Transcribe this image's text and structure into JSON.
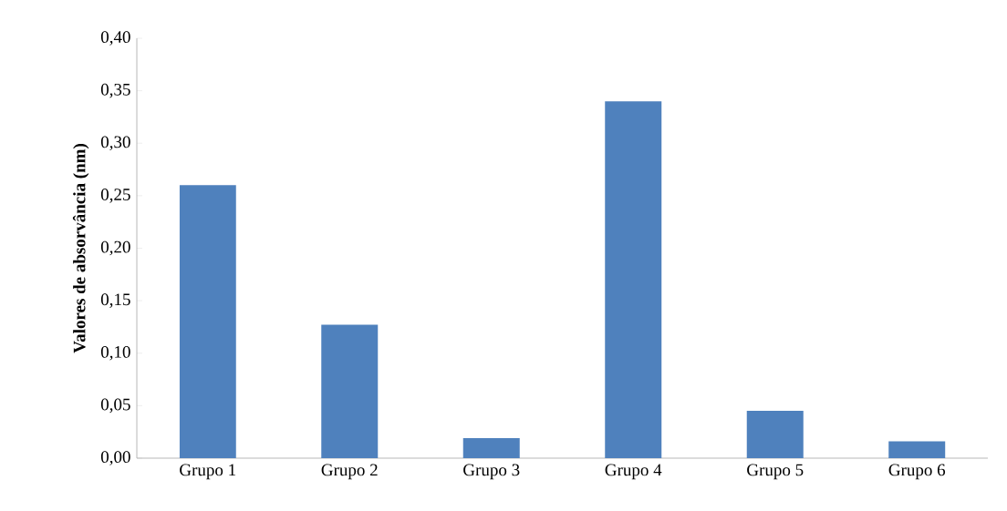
{
  "chart_data": {
    "type": "bar",
    "ylabel": "Valores de absorvância  (nm)",
    "categories": [
      "Grupo 1",
      "Grupo 2",
      "Grupo 3",
      "Grupo 4",
      "Grupo 5",
      "Grupo 6"
    ],
    "values": [
      0.26,
      0.127,
      0.019,
      0.34,
      0.045,
      0.016
    ],
    "color": "#4f81bd",
    "ylim": [
      0,
      0.4
    ],
    "yticks": [
      {
        "value": 0,
        "label": "0,00"
      },
      {
        "value": 0.05,
        "label": "0,05"
      },
      {
        "value": 0.1,
        "label": "0,10"
      },
      {
        "value": 0.15,
        "label": "0,15"
      },
      {
        "value": 0.2,
        "label": "0,20"
      },
      {
        "value": 0.25,
        "label": "0,25"
      },
      {
        "value": 0.3,
        "label": "0,30"
      },
      {
        "value": 0.35,
        "label": "0,35"
      },
      {
        "value": 0.4,
        "label": "0,40"
      }
    ],
    "grid": false
  }
}
